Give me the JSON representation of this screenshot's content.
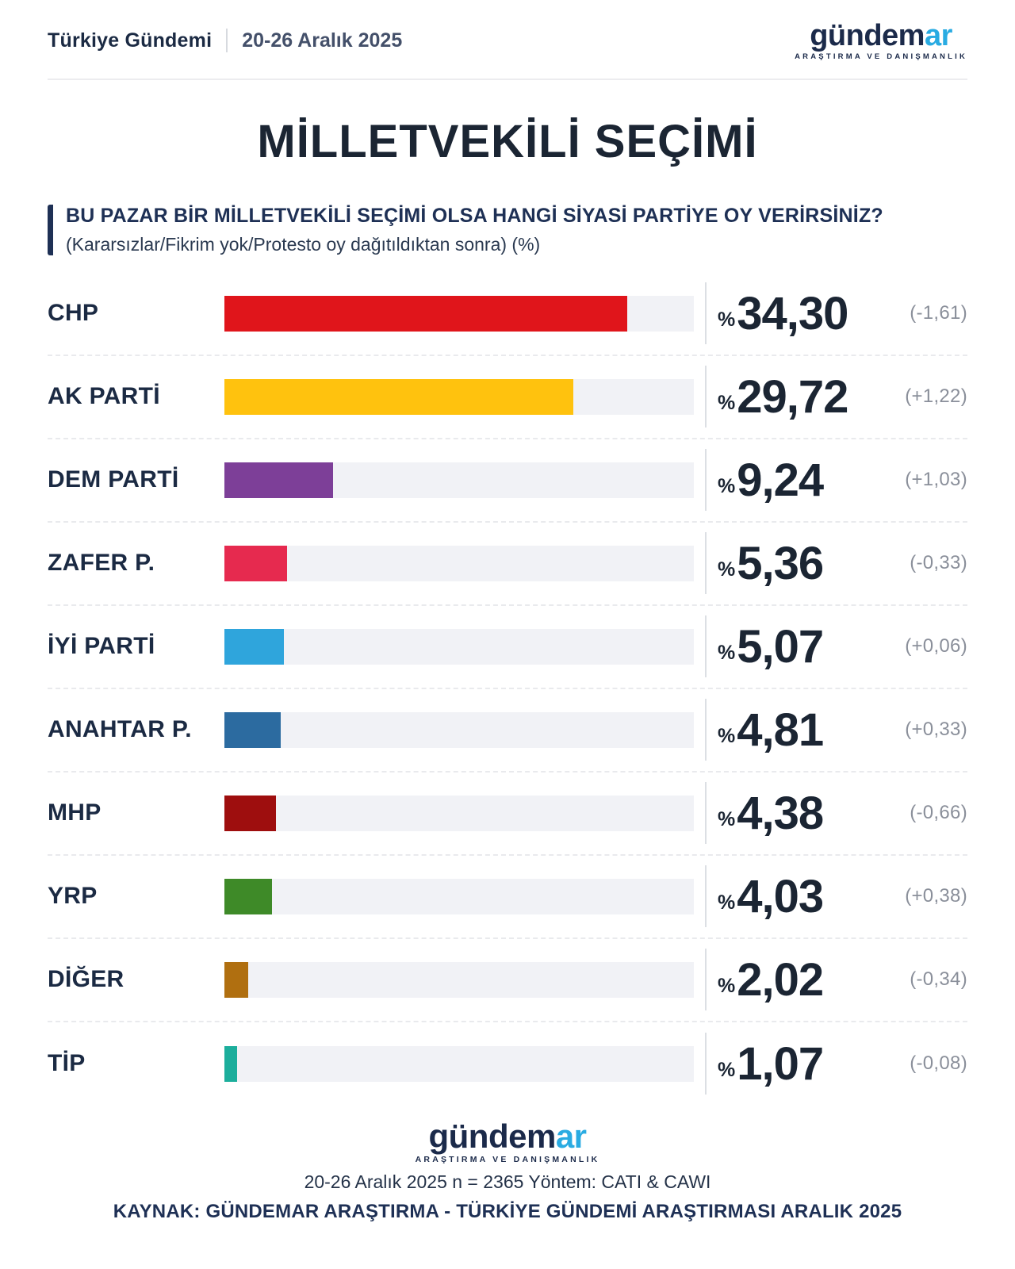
{
  "header": {
    "brand": "Türkiye Gündemi",
    "date_range": "20-26 Aralık 2025",
    "logo": {
      "part1": "gündem",
      "part2": "ar",
      "tagline": "ARAŞTIRMA VE DANIŞMANLIK",
      "color_primary": "#1b2a4a",
      "color_accent": "#29abe2"
    }
  },
  "title": "MİLLETVEKİLİ SEÇİMİ",
  "question": {
    "main": "BU PAZAR BİR MİLLETVEKİLİ SEÇİMİ OLSA HANGİ SİYASİ PARTİYE OY VERİRSİNİZ?",
    "sub": "(Kararsızlar/Fikrim yok/Protesto oy dağıtıldıktan sonra) (%)"
  },
  "chart_data": {
    "type": "bar",
    "orientation": "horizontal",
    "unit": "%",
    "xlim": [
      0,
      40
    ],
    "grid": false,
    "track_color": "#f1f2f6",
    "categories": [
      "CHP",
      "AK PARTİ",
      "DEM PARTİ",
      "ZAFER P.",
      "İYİ PARTİ",
      "ANAHTAR P.",
      "MHP",
      "YRP",
      "DİĞER",
      "TİP"
    ],
    "values": [
      34.3,
      29.72,
      9.24,
      5.36,
      5.07,
      4.81,
      4.38,
      4.03,
      2.02,
      1.07
    ],
    "changes": [
      -1.61,
      1.22,
      1.03,
      -0.33,
      0.06,
      0.33,
      -0.66,
      0.38,
      -0.34,
      -0.08
    ],
    "rows": [
      {
        "party": "CHP",
        "value": 34.3,
        "value_display": "34,30",
        "change_display": "(-1,61)",
        "color": "#e0151b"
      },
      {
        "party": "AK PARTİ",
        "value": 29.72,
        "value_display": "29,72",
        "change_display": "(+1,22)",
        "color": "#ffc20e"
      },
      {
        "party": "DEM PARTİ",
        "value": 9.24,
        "value_display": "9,24",
        "change_display": "(+1,03)",
        "color": "#7d3f98"
      },
      {
        "party": "ZAFER P.",
        "value": 5.36,
        "value_display": "5,36",
        "change_display": "(-0,33)",
        "color": "#e62a4f"
      },
      {
        "party": "İYİ PARTİ",
        "value": 5.07,
        "value_display": "5,07",
        "change_display": "(+0,06)",
        "color": "#2fa5dc"
      },
      {
        "party": "ANAHTAR P.",
        "value": 4.81,
        "value_display": "4,81",
        "change_display": "(+0,33)",
        "color": "#2c6ba0"
      },
      {
        "party": "MHP",
        "value": 4.38,
        "value_display": "4,38",
        "change_display": "(-0,66)",
        "color": "#9e0e0e"
      },
      {
        "party": "YRP",
        "value": 4.03,
        "value_display": "4,03",
        "change_display": "(+0,38)",
        "color": "#3e8a28"
      },
      {
        "party": "DİĞER",
        "value": 2.02,
        "value_display": "2,02",
        "change_display": "(-0,34)",
        "color": "#b06f10"
      },
      {
        "party": "TİP",
        "value": 1.07,
        "value_display": "1,07",
        "change_display": "(-0,08)",
        "color": "#1cae9c"
      }
    ],
    "pct_prefix": "%"
  },
  "footer": {
    "method_line": "20-26 Aralık 2025 n = 2365 Yöntem: CATI & CAWI",
    "source_line": "KAYNAK: GÜNDEMAR ARAŞTIRMA - TÜRKİYE GÜNDEMİ ARAŞTIRMASI ARALIK 2025"
  }
}
